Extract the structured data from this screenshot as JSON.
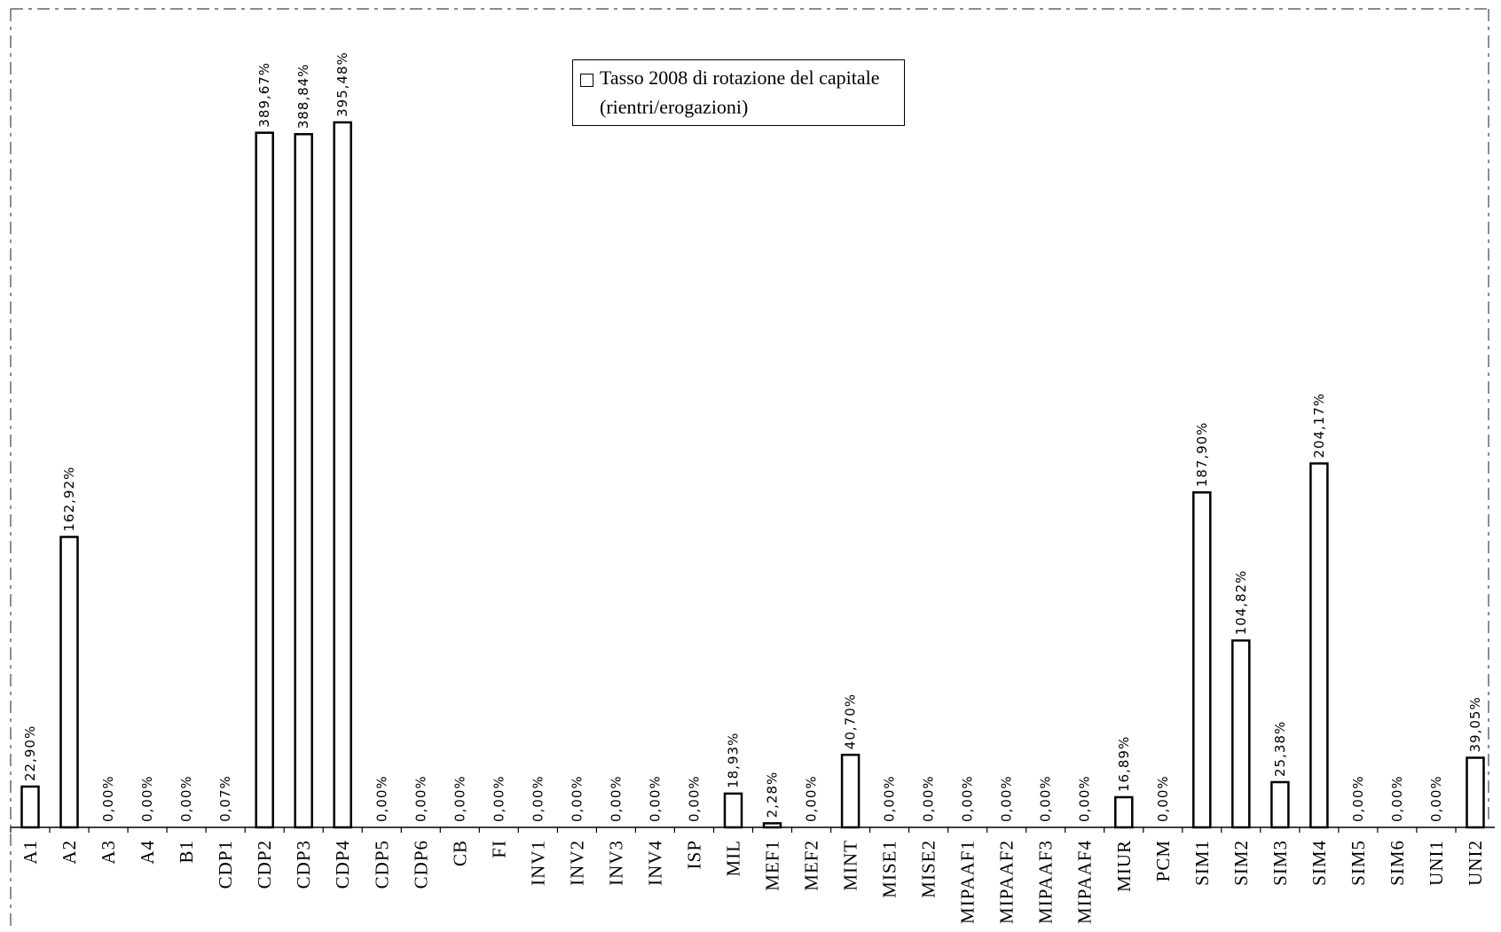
{
  "chart_data": {
    "type": "bar",
    "legend": {
      "label_line1": "Tasso 2008 di rotazione del capitale",
      "label_line2": "(rientri/erogazioni)"
    },
    "categories": [
      "A1",
      "A2",
      "A3",
      "A4",
      "B1",
      "CDP1",
      "CDP2",
      "CDP3",
      "CDP4",
      "CDP5",
      "CDP6",
      "CB",
      "FI",
      "INV1",
      "INV2",
      "INV3",
      "INV4",
      "ISP",
      "MIL",
      "MEF1",
      "MEF2",
      "MINT",
      "MISE1",
      "MISE2",
      "MIPAAF1",
      "MIPAAF2",
      "MIPAAF3",
      "MIPAAF4",
      "MIUR",
      "PCM",
      "SIM1",
      "SIM2",
      "SIM3",
      "SIM4",
      "SIM5",
      "SIM6",
      "UNI1",
      "UNI2"
    ],
    "values": [
      22.9,
      162.92,
      0,
      0,
      0,
      0.07,
      389.67,
      388.84,
      395.48,
      0,
      0,
      0,
      0,
      0,
      0,
      0,
      0,
      0,
      18.93,
      2.28,
      0,
      40.7,
      0,
      0,
      0,
      0,
      0,
      0,
      16.89,
      0,
      187.9,
      104.82,
      25.38,
      204.17,
      0,
      0,
      0,
      39.05
    ],
    "data_labels": [
      "22,90%",
      "162,92%",
      "0,00%",
      "0,00%",
      "0,00%",
      "0,07%",
      "389,67%",
      "388,84%",
      "395,48%",
      "0,00%",
      "0,00%",
      "0,00%",
      "0,00%",
      "0,00%",
      "0,00%",
      "0,00%",
      "0,00%",
      "0,00%",
      "18,93%",
      "2,28%",
      "0,00%",
      "40,70%",
      "0,00%",
      "0,00%",
      "0,00%",
      "0,00%",
      "0,00%",
      "0,00%",
      "16,89%",
      "0,00%",
      "187,90%",
      "104,82%",
      "25,38%",
      "204,17%",
      "0,00%",
      "0,00%",
      "0,00%",
      "39,05%"
    ],
    "ylim": [
      0,
      450
    ],
    "colors": {
      "bar_fill": "#ffffff",
      "bar_stroke": "#000000"
    }
  }
}
